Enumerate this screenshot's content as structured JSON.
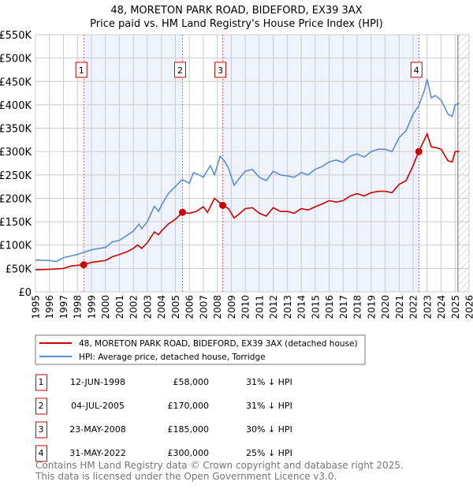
{
  "chart_data": {
    "type": "line",
    "title": "48, MORETON PARK ROAD, BIDEFORD, EX39 3AX",
    "subtitle": "Price paid vs. HM Land Registry's House Price Index (HPI)",
    "xlim": [
      1995,
      2026
    ],
    "ylim": [
      0,
      550000
    ],
    "grid": true,
    "x_ticks": [
      "1995",
      "1996",
      "1997",
      "1998",
      "1999",
      "2000",
      "2001",
      "2002",
      "2003",
      "2004",
      "2005",
      "2006",
      "2007",
      "2008",
      "2009",
      "2010",
      "2011",
      "2012",
      "2013",
      "2014",
      "2015",
      "2016",
      "2017",
      "2018",
      "2019",
      "2020",
      "2021",
      "2022",
      "2023",
      "2024",
      "2025",
      "2026"
    ],
    "y_ticks": [
      {
        "value": 0,
        "label": "£0"
      },
      {
        "value": 50000,
        "label": "£50K"
      },
      {
        "value": 100000,
        "label": "£100K"
      },
      {
        "value": 150000,
        "label": "£150K"
      },
      {
        "value": 200000,
        "label": "£200K"
      },
      {
        "value": 250000,
        "label": "£250K"
      },
      {
        "value": 300000,
        "label": "£300K"
      },
      {
        "value": 350000,
        "label": "£350K"
      },
      {
        "value": 400000,
        "label": "£400K"
      },
      {
        "value": 450000,
        "label": "£450K"
      },
      {
        "value": 500000,
        "label": "£500K"
      },
      {
        "value": 550000,
        "label": "£550K"
      }
    ],
    "series": [
      {
        "name": "48, MORETON PARK ROAD, BIDEFORD, EX39 3AX (detached house)",
        "color": "#cc0000",
        "x": [
          1995,
          1996,
          1997,
          1997.5,
          1998.45,
          1999,
          2000,
          2000.5,
          2001,
          2001.5,
          2002,
          2002.3,
          2002.6,
          2003,
          2003.5,
          2003.8,
          2004,
          2004.5,
          2005,
          2005.5,
          2006,
          2006.5,
          2007,
          2007.3,
          2007.8,
          2008.4,
          2008.8,
          2009.2,
          2009.5,
          2010,
          2010.5,
          2011,
          2011.5,
          2012,
          2012.5,
          2013,
          2013.5,
          2014,
          2014.5,
          2015,
          2015.5,
          2016,
          2016.5,
          2017,
          2017.5,
          2018,
          2018.5,
          2019,
          2019.5,
          2020,
          2020.5,
          2021,
          2021.5,
          2022,
          2022.4,
          2022.8,
          2023,
          2023.3,
          2023.7,
          2024,
          2024.5,
          2024.8,
          2025,
          2025.3
        ],
        "y": [
          47000,
          48000,
          50000,
          55000,
          58000,
          63000,
          67000,
          75000,
          80000,
          85000,
          93000,
          100000,
          93000,
          105000,
          128000,
          122000,
          130000,
          145000,
          155000,
          170000,
          168000,
          172000,
          182000,
          170000,
          200000,
          185000,
          178000,
          158000,
          165000,
          178000,
          180000,
          168000,
          162000,
          180000,
          172000,
          172000,
          168000,
          178000,
          175000,
          182000,
          188000,
          195000,
          192000,
          195000,
          205000,
          210000,
          205000,
          212000,
          215000,
          215000,
          212000,
          230000,
          238000,
          270000,
          300000,
          325000,
          338000,
          310000,
          308000,
          305000,
          280000,
          278000,
          300000,
          300000
        ]
      },
      {
        "name": "HPI: Average price, detached house, Torridge",
        "color": "#5b8fd4",
        "x": [
          1995,
          1996,
          1996.5,
          1997,
          1998,
          1998.5,
          1999,
          2000,
          2000.5,
          2001,
          2001.5,
          2002,
          2002.4,
          2002.6,
          2003,
          2003.5,
          2003.8,
          2004,
          2004.5,
          2005,
          2005.5,
          2006,
          2006.3,
          2006.7,
          2007,
          2007.5,
          2007.8,
          2008.2,
          2008.5,
          2008.8,
          2009.2,
          2009.5,
          2010,
          2010.5,
          2011,
          2011.5,
          2012,
          2012.5,
          2013,
          2013.5,
          2014,
          2014.5,
          2015,
          2015.5,
          2016,
          2016.5,
          2017,
          2017.5,
          2018,
          2018.5,
          2019,
          2019.5,
          2020,
          2020.5,
          2021,
          2021.5,
          2022,
          2022.4,
          2022.8,
          2023,
          2023.3,
          2023.6,
          2024,
          2024.5,
          2024.8,
          2025,
          2025.3
        ],
        "y": [
          68000,
          67000,
          65000,
          73000,
          80000,
          85000,
          90000,
          95000,
          107000,
          110000,
          120000,
          130000,
          145000,
          135000,
          150000,
          183000,
          172000,
          185000,
          210000,
          225000,
          240000,
          232000,
          255000,
          250000,
          245000,
          270000,
          250000,
          290000,
          280000,
          265000,
          228000,
          240000,
          258000,
          262000,
          245000,
          238000,
          258000,
          250000,
          248000,
          245000,
          255000,
          250000,
          262000,
          268000,
          278000,
          282000,
          277000,
          290000,
          295000,
          288000,
          300000,
          305000,
          305000,
          300000,
          330000,
          345000,
          380000,
          398000,
          430000,
          455000,
          415000,
          420000,
          410000,
          380000,
          375000,
          400000,
          403000
        ]
      }
    ],
    "sales": [
      {
        "n": "1",
        "x": 1998.45,
        "price": 58000
      },
      {
        "n": "2",
        "x": 2005.51,
        "price": 170000
      },
      {
        "n": "3",
        "x": 2008.39,
        "price": 185000
      },
      {
        "n": "4",
        "x": 2022.41,
        "price": 300000
      }
    ],
    "hatch_from": 2025.2
  },
  "legend": [
    {
      "label": "48, MORETON PARK ROAD, BIDEFORD, EX39 3AX (detached house)",
      "color": "#cc0000"
    },
    {
      "label": "HPI: Average price, detached house, Torridge",
      "color": "#5b8fd4"
    }
  ],
  "table": [
    {
      "n": "1",
      "date": "12-JUN-1998",
      "price": "£58,000",
      "hpi": "31% ↓ HPI"
    },
    {
      "n": "2",
      "date": "04-JUL-2005",
      "price": "£170,000",
      "hpi": "31% ↓ HPI"
    },
    {
      "n": "3",
      "date": "23-MAY-2008",
      "price": "£185,000",
      "hpi": "30% ↓ HPI"
    },
    {
      "n": "4",
      "date": "31-MAY-2022",
      "price": "£300,000",
      "hpi": "25% ↓ HPI"
    }
  ],
  "footer": {
    "line1": "Contains HM Land Registry data © Crown copyright and database right 2025.",
    "line2": "This data is licensed under the Open Government Licence v3.0."
  }
}
